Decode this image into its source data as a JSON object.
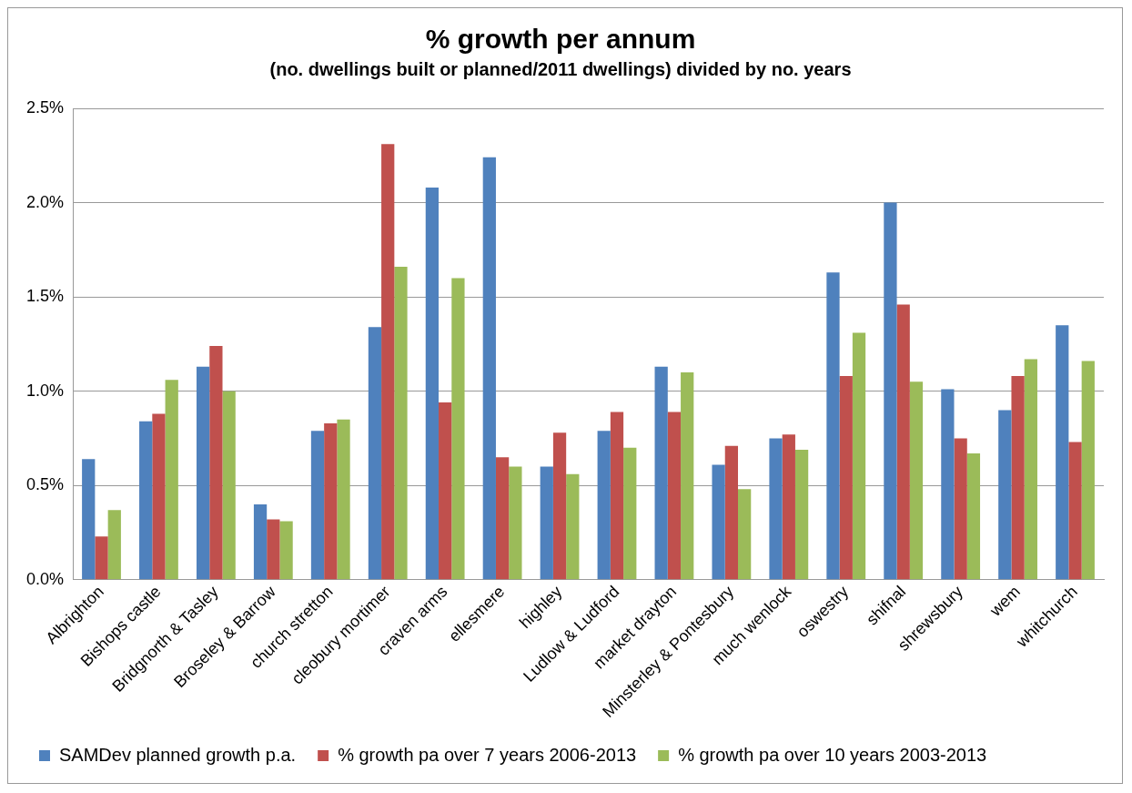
{
  "chart_data": {
    "type": "bar",
    "title": "% growth per annum",
    "subtitle": "(no. dwellings built or planned/2011 dwellings) divided by no. years",
    "categories": [
      "Albrighton",
      "Bishops castle",
      "Bridgnorth & Tasley",
      "Broseley & Barrow",
      "church stretton",
      "cleobury mortimer",
      "craven arms",
      "ellesmere",
      "highley",
      "Ludlow & Ludford",
      "market drayton",
      "Minsterley & Pontesbury",
      "much wenlock",
      "oswestry",
      "shifnal",
      "shrewsbury",
      "wem",
      "whitchurch"
    ],
    "series": [
      {
        "name": "SAMDev planned growth p.a.",
        "color": "#4f81bd",
        "values": [
          0.64,
          0.84,
          1.13,
          0.4,
          0.79,
          1.34,
          2.08,
          2.24,
          0.6,
          0.79,
          1.13,
          0.61,
          0.75,
          1.63,
          2.0,
          1.01,
          0.9,
          1.35
        ]
      },
      {
        "name": "% growth pa over 7 years 2006-2013",
        "color": "#c0504d",
        "values": [
          0.23,
          0.88,
          1.24,
          0.32,
          0.83,
          2.31,
          0.94,
          0.65,
          0.78,
          0.89,
          0.89,
          0.71,
          0.77,
          1.08,
          1.46,
          0.75,
          1.08,
          0.73
        ]
      },
      {
        "name": "% growth pa over 10 years 2003-2013",
        "color": "#9bbb59",
        "values": [
          0.37,
          1.06,
          1.0,
          0.31,
          0.85,
          1.66,
          1.6,
          0.6,
          0.56,
          0.7,
          1.1,
          0.48,
          0.69,
          1.31,
          1.05,
          0.67,
          1.17,
          1.16
        ]
      }
    ],
    "ylim": [
      0,
      2.5
    ],
    "yticks": [
      {
        "value": 0,
        "label": "0.0%"
      },
      {
        "value": 0.5,
        "label": "0.5%"
      },
      {
        "value": 1,
        "label": "1.0%"
      },
      {
        "value": 1.5,
        "label": "1.5%"
      },
      {
        "value": 2,
        "label": "2.0%"
      },
      {
        "value": 2.5,
        "label": "2.5%"
      }
    ],
    "grid": "y",
    "legend": "bottom"
  }
}
